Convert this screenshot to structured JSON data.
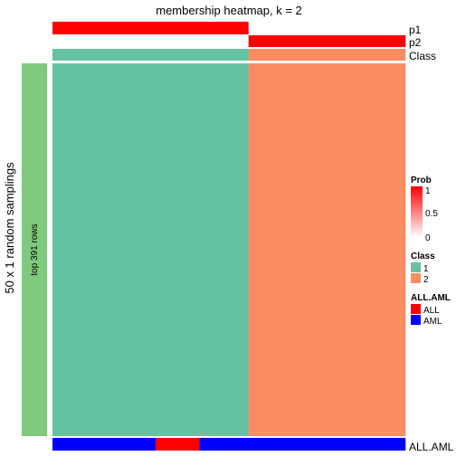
{
  "chart_data": {
    "type": "heatmap",
    "title": "membership heatmap, k = 2",
    "ylabel": "50 x 1 random samplings",
    "row_group_label": "top 391 rows",
    "row_group_color": "#7fc97f",
    "columns": {
      "count": 72,
      "group_sizes": [
        40,
        32
      ]
    },
    "membership_classes": [
      1,
      2
    ],
    "class_colors": [
      "#66c2a5",
      "#fc8d62"
    ],
    "annotations_top": [
      {
        "name": "p1",
        "segments": [
          {
            "count": 40,
            "value": 1
          },
          {
            "count": 32,
            "value": 0
          }
        ]
      },
      {
        "name": "p2",
        "segments": [
          {
            "count": 40,
            "value": 0
          },
          {
            "count": 32,
            "value": 1
          }
        ]
      },
      {
        "name": "Class",
        "segments": [
          {
            "count": 40,
            "class": 1
          },
          {
            "count": 32,
            "class": 2
          }
        ]
      }
    ],
    "annotation_bottom": {
      "name": "ALL.AML",
      "segments": [
        {
          "count": 21,
          "label": "AML"
        },
        {
          "count": 9,
          "label": "ALL"
        },
        {
          "count": 42,
          "label": "AML"
        }
      ]
    },
    "legends": {
      "prob": {
        "title": "Prob",
        "ticks": [
          "1",
          "0.5",
          "0"
        ],
        "color_high": "#ff0000",
        "color_low": "#ffffff"
      },
      "class": {
        "title": "Class",
        "items": [
          {
            "label": "1",
            "color": "#66c2a5"
          },
          {
            "label": "2",
            "color": "#fc8d62"
          }
        ]
      },
      "all_aml": {
        "title": "ALL.AML",
        "items": [
          {
            "label": "ALL",
            "color": "#ff0000"
          },
          {
            "label": "AML",
            "color": "#0000ff"
          }
        ]
      }
    }
  }
}
